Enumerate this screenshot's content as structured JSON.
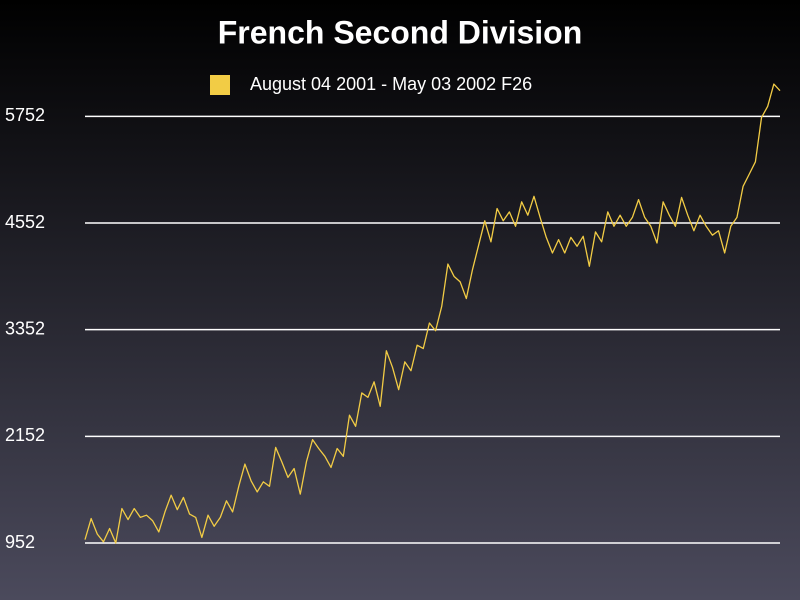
{
  "chart_data": {
    "type": "line",
    "title": "French Second Division",
    "series": [
      {
        "name": "August 04 2001  - May 03 2002 F26",
        "color": "#f2cc45",
        "values": [
          990,
          1227,
          1052,
          965,
          1115,
          952,
          1340,
          1215,
          1340,
          1240,
          1265,
          1202,
          1077,
          1302,
          1490,
          1327,
          1465,
          1277,
          1240,
          1015,
          1265,
          1140,
          1240,
          1427,
          1302,
          1590,
          1840,
          1652,
          1527,
          1640,
          1590,
          2027,
          1865,
          1690,
          1790,
          1502,
          1865,
          2115,
          2015,
          1927,
          1802,
          2015,
          1927,
          2390,
          2265,
          2640,
          2590,
          2765,
          2490,
          3115,
          2927,
          2677,
          2990,
          2890,
          3177,
          3140,
          3427,
          3340,
          3615,
          4090,
          3952,
          3890,
          3702,
          4027,
          4302,
          4577,
          4340,
          4715,
          4577,
          4677,
          4515,
          4790,
          4640,
          4852,
          4615,
          4390,
          4215,
          4365,
          4215,
          4390,
          4290,
          4402,
          4065,
          4452,
          4340,
          4677,
          4515,
          4640,
          4515,
          4615,
          4815,
          4615,
          4515,
          4327,
          4790,
          4640,
          4515,
          4840,
          4640,
          4465,
          4640,
          4515,
          4415,
          4465,
          4215,
          4515,
          4615,
          4965,
          5102,
          5240,
          5740,
          5865,
          6115,
          6040
        ]
      }
    ],
    "ylim": [
      952,
      6352
    ],
    "yticks": [
      952,
      2152,
      3352,
      4552,
      5752
    ],
    "grid": true
  }
}
